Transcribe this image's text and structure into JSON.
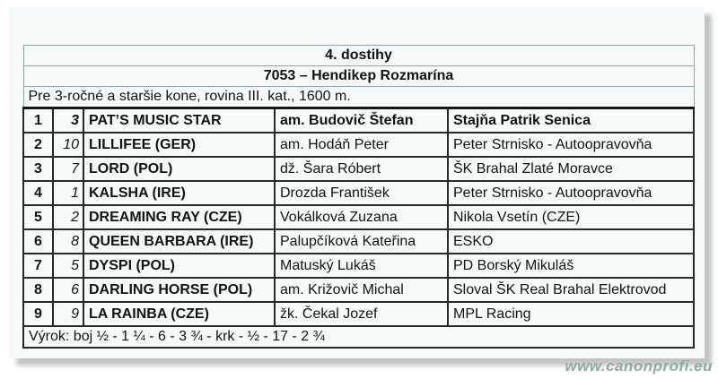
{
  "card": {
    "background": "#f4fafa",
    "shadow_color": "#c3c3c3"
  },
  "race_header": {
    "title": "4. dostihy",
    "subtitle": "7053 – Hendikep Rozmarína",
    "conditions": "Pre 3-ročné a staršie kone, rovina III. kat., 1600 m."
  },
  "results": {
    "rows": [
      {
        "rank": "1",
        "start_number": "3",
        "horse": "PAT’S MUSIC STAR",
        "jockey": "am. Budovič Štefan",
        "stable": "Stajňa Patrik Senica",
        "winner": true
      },
      {
        "rank": "2",
        "start_number": "10",
        "horse": "LILLIFEE (GER)",
        "jockey": "am. Hodáň Peter",
        "stable": "Peter Strnisko - Autoopravovňa"
      },
      {
        "rank": "3",
        "start_number": "7",
        "horse": "LORD (POL)",
        "jockey": "dž. Šara Róbert",
        "stable": "ŠK Brahal Zlaté Moravce"
      },
      {
        "rank": "4",
        "start_number": "1",
        "horse": "KALSHA (IRE)",
        "jockey": "Drozda František",
        "stable": "Peter Strnisko - Autoopravovňa"
      },
      {
        "rank": "5",
        "start_number": "2",
        "horse": "DREAMING RAY (CZE)",
        "jockey": "Vokálková Zuzana",
        "stable": "Nikola Vsetín (CZE)"
      },
      {
        "rank": "6",
        "start_number": "8",
        "horse": "QUEEN BARBARA (IRE)",
        "jockey": "Palupčíková Kateřina",
        "stable": "ESKO"
      },
      {
        "rank": "7",
        "start_number": "5",
        "horse": "DYSPI (POL)",
        "jockey": "Matuský Lukáš",
        "stable": "PD Borský Mikuláš"
      },
      {
        "rank": "8",
        "start_number": "6",
        "horse": "DARLING HORSE (POL)",
        "jockey": "am. Križovič Michal",
        "stable": "Sloval ŠK Real Brahal Elektrovod"
      },
      {
        "rank": "9",
        "start_number": "9",
        "horse": "LA RAINBA (CZE)",
        "jockey": "žk. Čekal Jozef",
        "stable": "MPL Racing"
      }
    ]
  },
  "verdict": {
    "text": "Výrok: boj ½ - 1 ¼ - 6 - 3 ¾ - krk - ½ - 17 - 2 ¾"
  },
  "watermark": {
    "text": "www.canonprofi.eu",
    "color": "#8fab9d"
  }
}
